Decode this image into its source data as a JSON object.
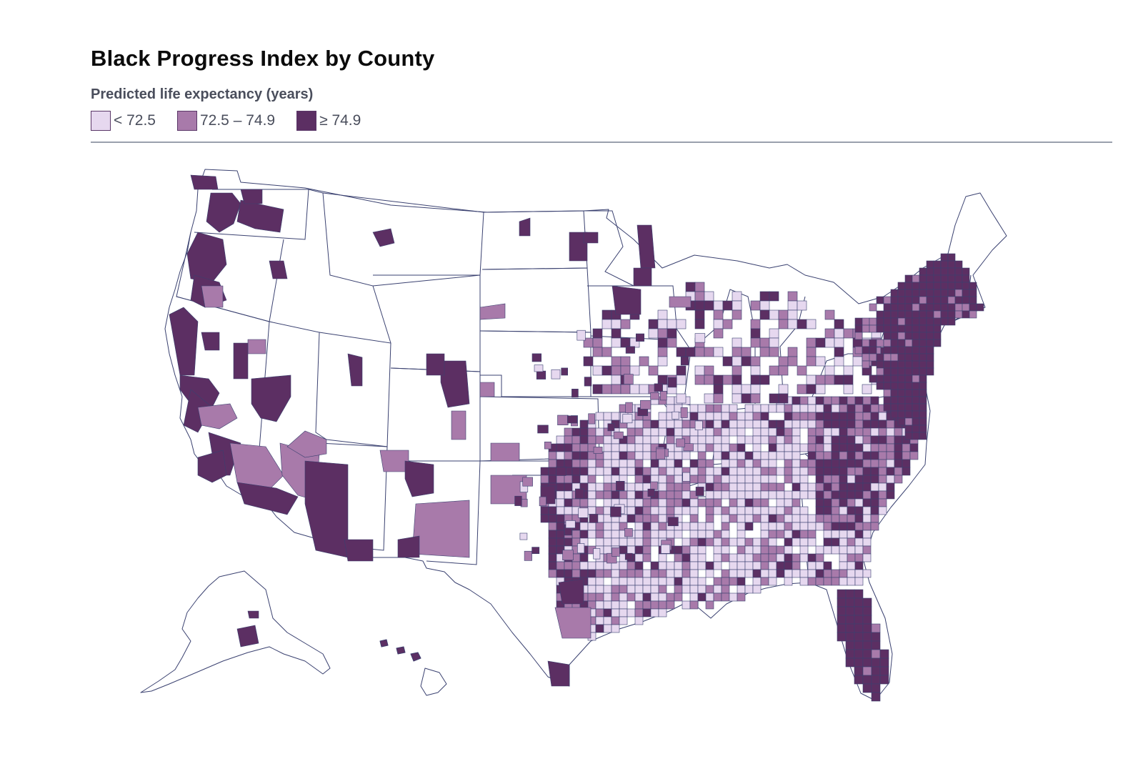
{
  "title": "Black Progress Index by County",
  "legend": {
    "title": "Predicted life expectancy (years)",
    "items": [
      {
        "label": "< 72.5",
        "color": "#e6d8ef"
      },
      {
        "label": "72.5 – 74.9",
        "color": "#a87aaa"
      },
      {
        "label": "≥ 74.9",
        "color": "#5c2f63"
      }
    ]
  },
  "colors": {
    "no_data": "#ffffff",
    "border": "#3a4170",
    "divider": "#9aa0ad"
  }
}
